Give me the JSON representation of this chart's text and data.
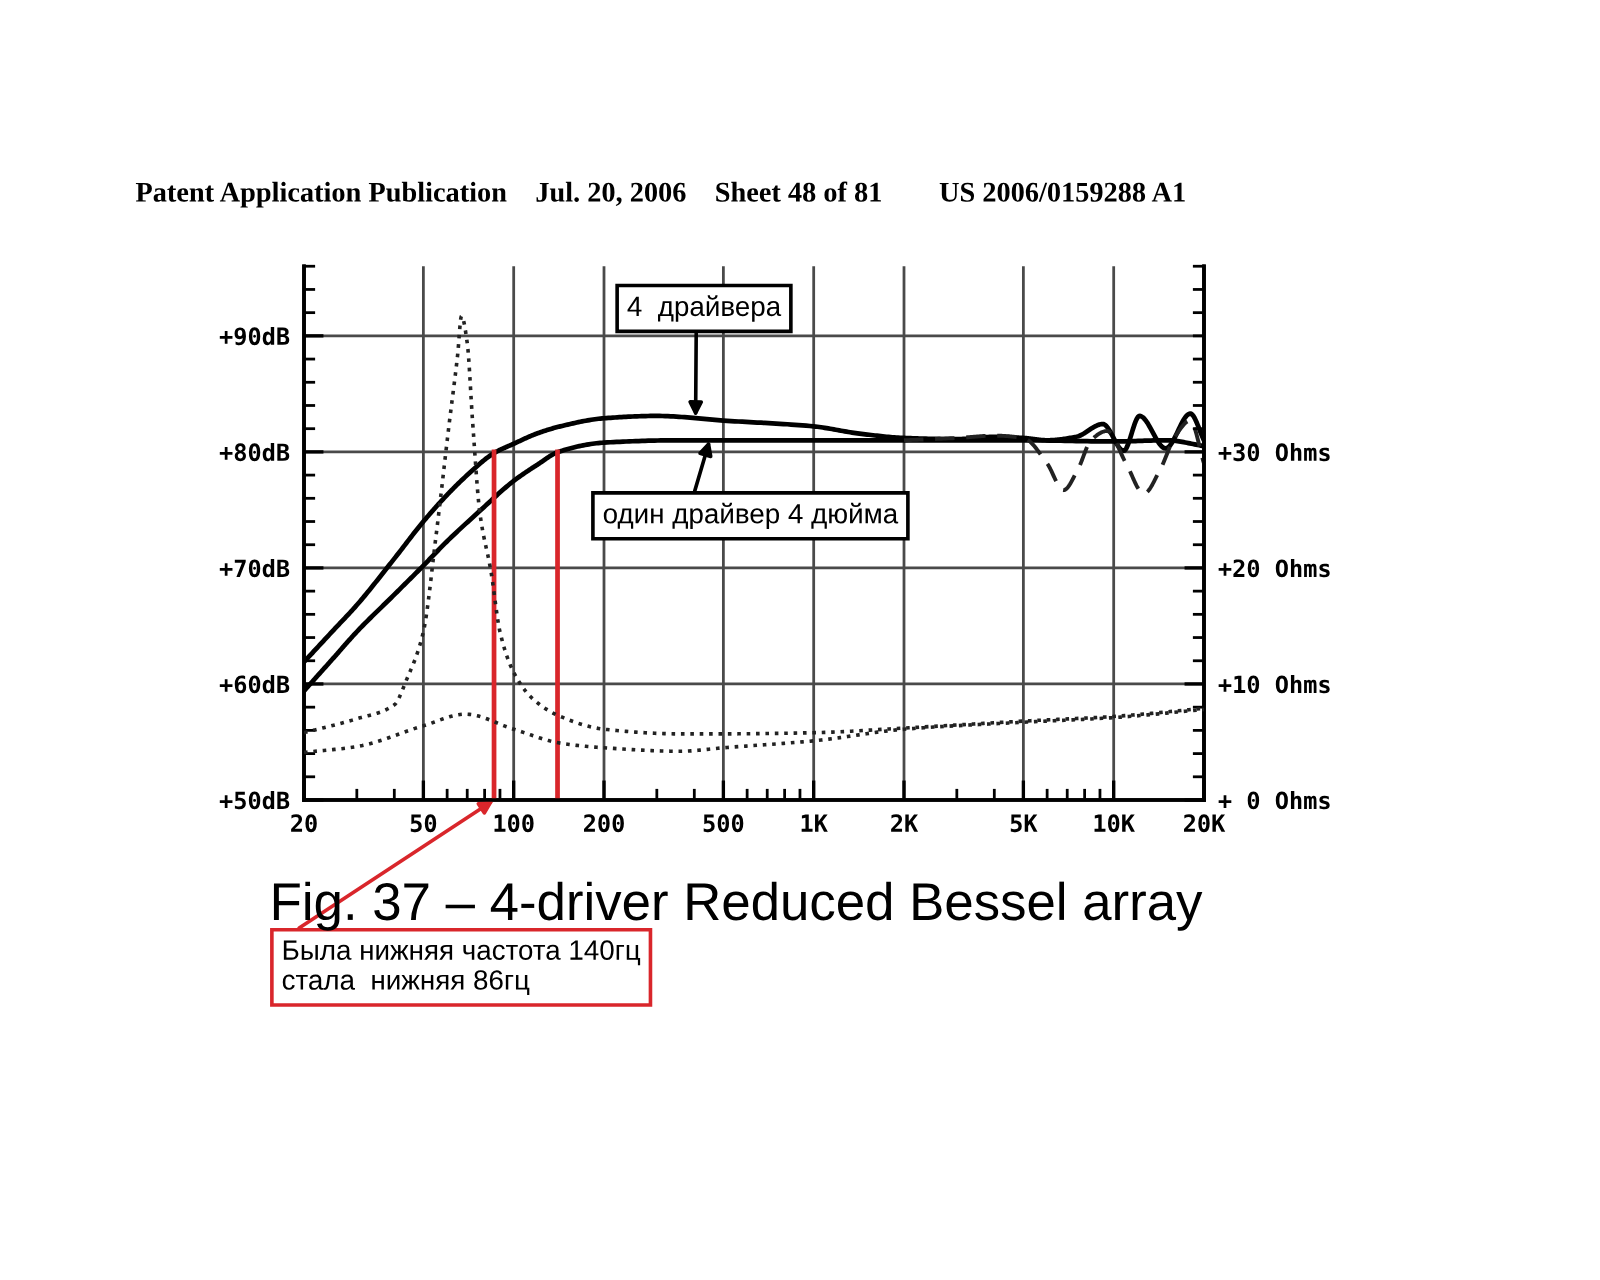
{
  "chart_data": {
    "type": "line",
    "title": "Patent Application Publication    Jul. 20, 2006    Sheet 48 of 81        US 2006/0159288 A1",
    "log": "x",
    "grid": true,
    "xlim": [
      20,
      20000
    ],
    "xticks": [
      20,
      50,
      100,
      200,
      500,
      {
        "value": 1000,
        "label": "1K"
      },
      {
        "value": 2000,
        "label": "2K"
      },
      {
        "value": 5000,
        "label": "5K"
      },
      {
        "value": 10000,
        "label": "10K"
      },
      {
        "value": 20000,
        "label": "20K"
      }
    ],
    "ylim": [
      50,
      96
    ],
    "yticks": [
      {
        "value": 50,
        "label": "+50dB"
      },
      {
        "value": 60,
        "label": "+60dB"
      },
      {
        "value": 70,
        "label": "+70dB"
      },
      {
        "value": 80,
        "label": "+80dB"
      },
      {
        "value": 90,
        "label": "+90dB"
      }
    ],
    "y2lim": [
      0,
      46
    ],
    "y2ticks": [
      {
        "value": 0,
        "label": "+ 0 Ohms"
      },
      {
        "value": 10,
        "label": "+10 Ohms"
      },
      {
        "value": 20,
        "label": "+20 Ohms"
      },
      {
        "value": 30,
        "label": "+30 Ohms"
      }
    ],
    "series": [
      {
        "color": "#000000",
        "line_style": "solid",
        "x": [
          20,
          25,
          30,
          40,
          50,
          60,
          70,
          86,
          100,
          120,
          143,
          200,
          300,
          500,
          1000,
          1400,
          2000,
          3000,
          4000,
          5000,
          6000,
          7500,
          9200,
          10800,
          12200,
          14900,
          18000,
          20000
        ],
        "values": [
          61.9,
          64.6,
          66.8,
          70.8,
          74.0,
          76.3,
          78.0,
          79.9,
          80.7,
          81.6,
          82.2,
          82.9,
          83.1,
          82.7,
          82.2,
          81.6,
          81.2,
          81.1,
          81.3,
          81.2,
          81.0,
          81.3,
          82.4,
          80.1,
          83.1,
          80.3,
          83.3,
          81.0
        ]
      },
      {
        "color": "#000000",
        "line_style": "solid",
        "x": [
          20,
          25,
          30,
          40,
          50,
          60,
          77,
          100,
          120,
          141,
          200,
          358,
          1000,
          2000,
          5000,
          10000,
          15000,
          20000
        ],
        "values": [
          59.4,
          62.2,
          64.5,
          67.7,
          70.2,
          72.3,
          74.9,
          77.5,
          78.9,
          80.0,
          80.8,
          81.0,
          81.0,
          81.0,
          81.0,
          80.9,
          81.0,
          80.5
        ]
      },
      {
        "color": "#222222",
        "line_style": "dashed",
        "x": [
          2000,
          3000,
          4000,
          5000,
          6000,
          6800,
          7600,
          8400,
          9500,
          11000,
          12600,
          14300,
          16000,
          18000,
          20000
        ],
        "values": [
          81.0,
          81.2,
          81.4,
          81.2,
          79.0,
          76.7,
          78.5,
          81.0,
          81.8,
          79.0,
          76.4,
          78.5,
          81.3,
          82.7,
          79.0
        ]
      },
      {
        "color": "#222222",
        "line_style": "dotted",
        "axis": "y2",
        "x": [
          20,
          30,
          40,
          44,
          50,
          55,
          61,
          65,
          67,
          70,
          73,
          77,
          84,
          90,
          100,
          116,
          143,
          200,
          358,
          500,
          1000,
          2000,
          5000,
          10000,
          20000
        ],
        "values": [
          5.8,
          7.0,
          8.2,
          10.4,
          14.5,
          22.6,
          32.5,
          38.3,
          41.7,
          39.4,
          32.5,
          24.9,
          19.7,
          14.5,
          11.0,
          8.7,
          7.2,
          6.1,
          5.7,
          5.7,
          5.8,
          6.2,
          6.8,
          7.2,
          7.9
        ]
      },
      {
        "color": "#222222",
        "line_style": "dotted",
        "axis": "y2",
        "x": [
          20,
          30,
          50,
          69,
          100,
          143,
          200,
          358,
          500,
          1000,
          2000,
          5000,
          10000,
          20000
        ],
        "values": [
          4.1,
          4.6,
          6.4,
          7.4,
          6.1,
          4.9,
          4.5,
          4.2,
          4.5,
          5.1,
          6.1,
          6.7,
          7.1,
          7.8
        ]
      },
      {
        "color": "#d9262b",
        "line_style": "solid",
        "x": [
          86,
          86
        ],
        "values": [
          50,
          80
        ]
      },
      {
        "color": "#d9262b",
        "line_style": "solid",
        "x": [
          140,
          140
        ],
        "values": [
          50,
          80
        ]
      }
    ],
    "annotations": [
      {
        "text": "4  драйвера",
        "x": 404,
        "y": 83.0
      },
      {
        "text": "один драйвер 4 дюйма",
        "x": 450,
        "y": 81.0
      },
      {
        "text": "Была нижняя частота 140гц\nстала  нижняя 86гц",
        "x": 86,
        "y": 50
      },
      "Fig. 37 – 4-driver Reduced Bessel array"
    ]
  }
}
